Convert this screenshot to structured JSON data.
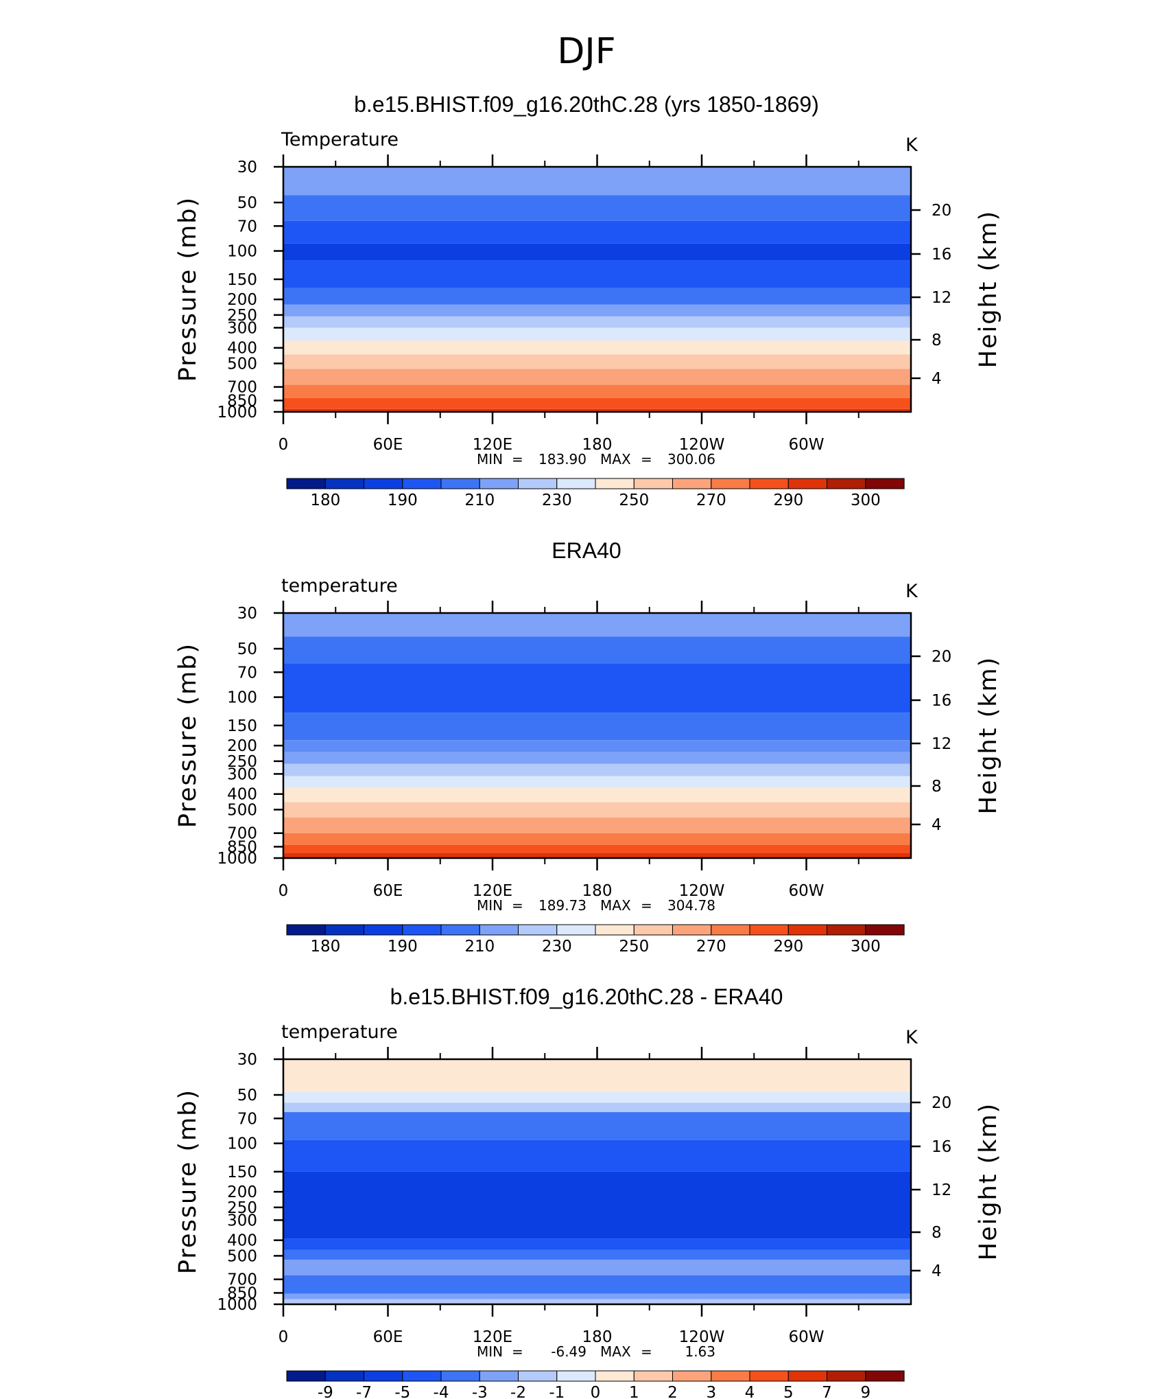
{
  "figure_title": "DJF",
  "chart_data": [
    {
      "type": "heatmap",
      "title": "b.e15.BHIST.f09_g16.20thC.28 (yrs 1850-1869)",
      "variable": "Temperature",
      "units": "K",
      "ylabel": "Pressure (mb)",
      "ylabel_right": "Height (km)",
      "x_ticks": [
        "0",
        "60E",
        "120E",
        "180",
        "120W",
        "60W"
      ],
      "y_ticks": [
        "30",
        "50",
        "70",
        "100",
        "150",
        "200",
        "250",
        "300",
        "400",
        "500",
        "700",
        "850",
        "1000"
      ],
      "height_ticks": [
        "20",
        "16",
        "12",
        "8",
        "4"
      ],
      "stats": {
        "min_label": "MIN",
        "min": "183.90",
        "max_label": "MAX",
        "max": "300.06"
      },
      "colorbar_labels": [
        "180",
        "190",
        "210",
        "230",
        "250",
        "270",
        "290",
        "300"
      ],
      "colorbar_colors": [
        "#021a8a",
        "#0532c2",
        "#0b3fe2",
        "#1e56f5",
        "#3d74f6",
        "#7da2f7",
        "#b3cafa",
        "#dce9fc",
        "#fde8d4",
        "#fcc9ab",
        "#fba47c",
        "#f97c47",
        "#f6511d",
        "#e03308",
        "#b01e05",
        "#820606"
      ],
      "level_profile": [
        {
          "pressure": 30,
          "color": "#7da2f7"
        },
        {
          "pressure": 45,
          "color": "#3d74f6"
        },
        {
          "pressure": 65,
          "color": "#1e56f5"
        },
        {
          "pressure": 90,
          "color": "#0b3fe2"
        },
        {
          "pressure": 115,
          "color": "#1e56f5"
        },
        {
          "pressure": 170,
          "color": "#3d74f6"
        },
        {
          "pressure": 215,
          "color": "#7da2f7"
        },
        {
          "pressure": 255,
          "color": "#b3cafa"
        },
        {
          "pressure": 300,
          "color": "#dce9fc"
        },
        {
          "pressure": 360,
          "color": "#fde8d4"
        },
        {
          "pressure": 440,
          "color": "#fcc9ab"
        },
        {
          "pressure": 540,
          "color": "#fba47c"
        },
        {
          "pressure": 680,
          "color": "#f97c47"
        },
        {
          "pressure": 820,
          "color": "#f6511d"
        },
        {
          "pressure": 960,
          "color": "#e03308"
        }
      ]
    },
    {
      "type": "heatmap",
      "title": "ERA40",
      "variable": "temperature",
      "units": "K",
      "ylabel": "Pressure (mb)",
      "ylabel_right": "Height (km)",
      "x_ticks": [
        "0",
        "60E",
        "120E",
        "180",
        "120W",
        "60W"
      ],
      "y_ticks": [
        "30",
        "50",
        "70",
        "100",
        "150",
        "200",
        "250",
        "300",
        "400",
        "500",
        "700",
        "850",
        "1000"
      ],
      "height_ticks": [
        "20",
        "16",
        "12",
        "8",
        "4"
      ],
      "stats": {
        "min_label": "MIN",
        "min": "189.73",
        "max_label": "MAX",
        "max": "304.78"
      },
      "colorbar_labels": [
        "180",
        "190",
        "210",
        "230",
        "250",
        "270",
        "290",
        "300"
      ],
      "colorbar_colors": [
        "#021a8a",
        "#0532c2",
        "#0b3fe2",
        "#1e56f5",
        "#3d74f6",
        "#7da2f7",
        "#b3cafa",
        "#dce9fc",
        "#fde8d4",
        "#fcc9ab",
        "#fba47c",
        "#f97c47",
        "#f6511d",
        "#e03308",
        "#b01e05",
        "#820606"
      ],
      "level_profile": [
        {
          "pressure": 30,
          "color": "#7da2f7"
        },
        {
          "pressure": 42,
          "color": "#3d74f6"
        },
        {
          "pressure": 62,
          "color": "#1e56f5"
        },
        {
          "pressure": 125,
          "color": "#3d74f6"
        },
        {
          "pressure": 185,
          "color": "#5f8cf6"
        },
        {
          "pressure": 220,
          "color": "#7da2f7"
        },
        {
          "pressure": 260,
          "color": "#b3cafa"
        },
        {
          "pressure": 310,
          "color": "#dce9fc"
        },
        {
          "pressure": 365,
          "color": "#fde8d4"
        },
        {
          "pressure": 450,
          "color": "#fcc9ab"
        },
        {
          "pressure": 560,
          "color": "#fba47c"
        },
        {
          "pressure": 700,
          "color": "#f97c47"
        },
        {
          "pressure": 830,
          "color": "#f6511d"
        },
        {
          "pressure": 930,
          "color": "#e03308"
        }
      ]
    },
    {
      "type": "heatmap",
      "title": "b.e15.BHIST.f09_g16.20thC.28 - ERA40",
      "variable": "temperature",
      "units": "K",
      "ylabel": "Pressure (mb)",
      "ylabel_right": "Height (km)",
      "x_ticks": [
        "0",
        "60E",
        "120E",
        "180",
        "120W",
        "60W"
      ],
      "y_ticks": [
        "30",
        "50",
        "70",
        "100",
        "150",
        "200",
        "250",
        "300",
        "400",
        "500",
        "700",
        "850",
        "1000"
      ],
      "height_ticks": [
        "20",
        "16",
        "12",
        "8",
        "4"
      ],
      "stats": {
        "min_label": "MIN",
        "min": "-6.49",
        "max_label": "MAX",
        "max": "1.63"
      },
      "colorbar_labels": [
        "-9",
        "-7",
        "-5",
        "-4",
        "-3",
        "-2",
        "-1",
        "0",
        "1",
        "2",
        "3",
        "4",
        "5",
        "7",
        "9"
      ],
      "colorbar_colors": [
        "#021a8a",
        "#0532c2",
        "#0b3fe2",
        "#1e56f5",
        "#3d74f6",
        "#7da2f7",
        "#b3cafa",
        "#dce9fc",
        "#fde8d4",
        "#fcc9ab",
        "#fba47c",
        "#f97c47",
        "#f6511d",
        "#e03308",
        "#b01e05",
        "#820606"
      ],
      "level_profile": [
        {
          "pressure": 30,
          "color": "#fde8d4"
        },
        {
          "pressure": 48,
          "color": "#dce9fc"
        },
        {
          "pressure": 56,
          "color": "#b3cafa"
        },
        {
          "pressure": 64,
          "color": "#3d74f6"
        },
        {
          "pressure": 95,
          "color": "#1e56f5"
        },
        {
          "pressure": 150,
          "color": "#0b3fe2"
        },
        {
          "pressure": 390,
          "color": "#1e56f5"
        },
        {
          "pressure": 460,
          "color": "#3d74f6"
        },
        {
          "pressure": 530,
          "color": "#7da2f7"
        },
        {
          "pressure": 660,
          "color": "#3d74f6"
        },
        {
          "pressure": 860,
          "color": "#7da2f7"
        },
        {
          "pressure": 930,
          "color": "#b3cafa"
        }
      ]
    }
  ]
}
